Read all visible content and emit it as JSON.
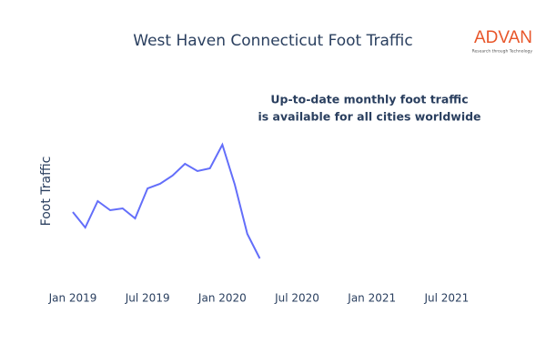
{
  "chart_data": {
    "type": "line",
    "title": "West Haven Connecticut Foot Traffic",
    "y_label": "Foot Traffic",
    "annotation": [
      "Up-to-date monthly foot traffic",
      "is available for all cities worldwide"
    ],
    "logo": {
      "name": "ADVAN",
      "tagline": "Research through Technology"
    },
    "x": [
      "2019-01",
      "2019-02",
      "2019-03",
      "2019-04",
      "2019-05",
      "2019-06",
      "2019-07",
      "2019-08",
      "2019-09",
      "2019-10",
      "2019-11",
      "2019-12",
      "2020-01",
      "2020-02",
      "2020-03",
      "2020-04"
    ],
    "series": [
      {
        "name": "Foot Traffic",
        "color": "#636efa",
        "values": [
          38.5,
          30,
          44.5,
          39.5,
          40.5,
          35,
          51.5,
          54,
          58.5,
          65,
          61,
          62.5,
          75.5,
          53.5,
          26.5,
          13
        ]
      }
    ],
    "xlim": [
      "2018-11",
      "2021-10"
    ],
    "xticks": [
      {
        "value": "2019-01",
        "label": "Jan 2019"
      },
      {
        "value": "2019-07",
        "label": "Jul 2019"
      },
      {
        "value": "2020-01",
        "label": "Jan 2020"
      },
      {
        "value": "2020-07",
        "label": "Jul 2020"
      },
      {
        "value": "2021-01",
        "label": "Jan 2021"
      },
      {
        "value": "2021-07",
        "label": "Jul 2021"
      }
    ],
    "ylim": [
      0,
      100
    ]
  }
}
